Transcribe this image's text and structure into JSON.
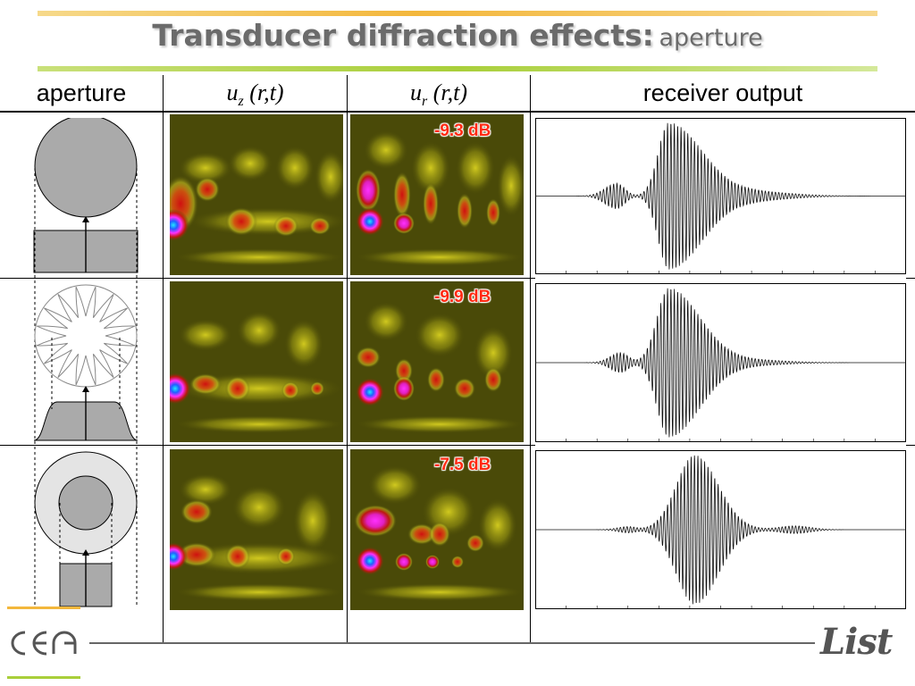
{
  "title": {
    "main": "Transducer diffraction effects:",
    "sub": "aperture"
  },
  "headers": {
    "aperture": "aperture",
    "uz_base": "u",
    "uz_sub": "z",
    "uz_args": "(r,t)",
    "ur_base": "u",
    "ur_sub": "r",
    "ur_args": "(r,t)",
    "receiver": "receiver output"
  },
  "rows": [
    {
      "aperture": "full-disk",
      "db": "-9.3 dB"
    },
    {
      "aperture": "star-apodized",
      "db": "-9.9 dB"
    },
    {
      "aperture": "annular",
      "db": "-7.5 dB"
    }
  ],
  "footer": {
    "left_logo": "cea",
    "right_logo": "List"
  },
  "colors": {
    "db_text": "#ff2a12",
    "heat_background": "#4a4a08",
    "aperture_fill": "#aaaaaa",
    "bar_top": "#f3b73c",
    "bar_bottom": "#a9cf3a"
  }
}
